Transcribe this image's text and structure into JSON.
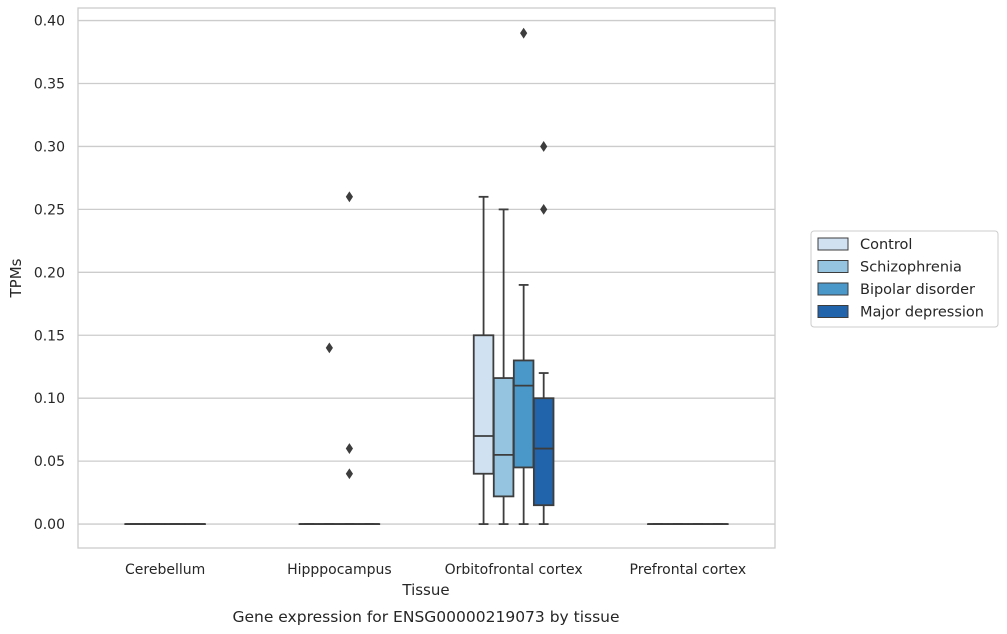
{
  "chart_data": {
    "type": "box",
    "caption": "Gene expression for ENSG00000219073 by tissue",
    "xlabel": "Tissue",
    "ylabel": "TPMs",
    "ylim": [
      -0.019,
      0.41
    ],
    "yticks": [
      "0.00",
      "0.05",
      "0.10",
      "0.15",
      "0.20",
      "0.25",
      "0.30",
      "0.35",
      "0.40"
    ],
    "grid": "horizontal",
    "legend_position": "right",
    "categories": [
      "Cerebellum",
      "Hipppocampus",
      "Orbitofrontal cortex",
      "Prefrontal cortex"
    ],
    "series": [
      {
        "name": "Control",
        "color": "#d0e1f2",
        "boxes": [
          {
            "min": 0,
            "q1": 0,
            "median": 0,
            "q3": 0,
            "max": 0,
            "outliers": []
          },
          {
            "min": 0,
            "q1": 0,
            "median": 0,
            "q3": 0,
            "max": 0,
            "outliers": []
          },
          {
            "min": 0,
            "q1": 0.04,
            "median": 0.07,
            "q3": 0.15,
            "max": 0.26,
            "outliers": []
          },
          {
            "min": 0,
            "q1": 0,
            "median": 0,
            "q3": 0,
            "max": 0,
            "outliers": []
          }
        ]
      },
      {
        "name": "Schizophrenia",
        "color": "#94c4df",
        "boxes": [
          {
            "min": 0,
            "q1": 0,
            "median": 0,
            "q3": 0,
            "max": 0,
            "outliers": []
          },
          {
            "min": 0,
            "q1": 0,
            "median": 0,
            "q3": 0,
            "max": 0,
            "outliers": [
              0.14
            ]
          },
          {
            "min": 0,
            "q1": 0.022,
            "median": 0.055,
            "q3": 0.116,
            "max": 0.25,
            "outliers": []
          },
          {
            "min": 0,
            "q1": 0,
            "median": 0,
            "q3": 0,
            "max": 0,
            "outliers": []
          }
        ]
      },
      {
        "name": "Bipolar disorder",
        "color": "#4a98c9",
        "boxes": [
          {
            "min": 0,
            "q1": 0,
            "median": 0,
            "q3": 0,
            "max": 0,
            "outliers": []
          },
          {
            "min": 0,
            "q1": 0,
            "median": 0,
            "q3": 0,
            "max": 0,
            "outliers": [
              0.26,
              0.06,
              0.04
            ]
          },
          {
            "min": 0,
            "q1": 0.045,
            "median": 0.11,
            "q3": 0.13,
            "max": 0.19,
            "outliers": [
              0.39
            ]
          },
          {
            "min": 0,
            "q1": 0,
            "median": 0,
            "q3": 0,
            "max": 0,
            "outliers": []
          }
        ]
      },
      {
        "name": "Major depression",
        "color": "#2164ab",
        "boxes": [
          {
            "min": 0,
            "q1": 0,
            "median": 0,
            "q3": 0,
            "max": 0,
            "outliers": []
          },
          {
            "min": 0,
            "q1": 0,
            "median": 0,
            "q3": 0,
            "max": 0,
            "outliers": []
          },
          {
            "min": 0,
            "q1": 0.015,
            "median": 0.06,
            "q3": 0.1,
            "max": 0.12,
            "outliers": [
              0.3,
              0.25
            ]
          },
          {
            "min": 0,
            "q1": 0,
            "median": 0,
            "q3": 0,
            "max": 0,
            "outliers": []
          }
        ]
      }
    ]
  }
}
